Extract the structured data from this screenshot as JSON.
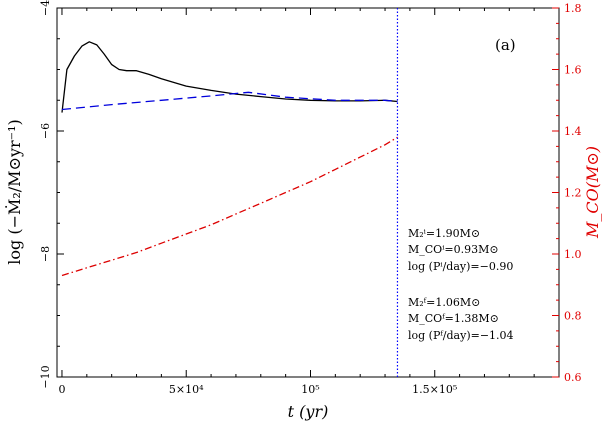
{
  "chart_data": {
    "type": "line",
    "panel_label": "(a)",
    "xlabel": "t (yr)",
    "ylabel_left": "log (−Ṁ₂/M⊙yr⁻¹)",
    "ylabel_right": "M_CO(M⊙)",
    "xlim": [
      -2000,
      200000
    ],
    "ylim_left": [
      -10,
      -4
    ],
    "ylim_right": [
      0.6,
      1.8
    ],
    "x_ticks": [
      {
        "value": 0,
        "label": "0"
      },
      {
        "value": 50000,
        "label": "5×10⁴"
      },
      {
        "value": 100000,
        "label": "10⁵"
      },
      {
        "value": 150000,
        "label": "1.5×10⁵"
      }
    ],
    "y_left_ticks": [
      {
        "value": -4,
        "label": "−4"
      },
      {
        "value": -6,
        "label": "−6"
      },
      {
        "value": -8,
        "label": "−8"
      },
      {
        "value": -10,
        "label": "−10"
      }
    ],
    "y_right_ticks": [
      {
        "value": 0.6,
        "label": "0.6"
      },
      {
        "value": 0.8,
        "label": "0.8"
      },
      {
        "value": 1.0,
        "label": "1.0"
      },
      {
        "value": 1.2,
        "label": "1.2"
      },
      {
        "value": 1.4,
        "label": "1.4"
      },
      {
        "value": 1.6,
        "label": "1.6"
      },
      {
        "value": 1.8,
        "label": "1.8"
      }
    ],
    "vline_x": 135000,
    "series": [
      {
        "axis": "left",
        "style": "solid",
        "color": "#000000",
        "x": [
          0,
          2000,
          5000,
          8000,
          11000,
          14000,
          17000,
          20000,
          23000,
          26000,
          30000,
          35000,
          40000,
          50000,
          60000,
          70000,
          80000,
          90000,
          100000,
          110000,
          120000,
          130000,
          135000
        ],
        "y": [
          -5.7,
          -5.0,
          -4.78,
          -4.62,
          -4.55,
          -4.6,
          -4.75,
          -4.92,
          -5.0,
          -5.02,
          -5.02,
          -5.08,
          -5.15,
          -5.27,
          -5.34,
          -5.4,
          -5.44,
          -5.48,
          -5.5,
          -5.51,
          -5.51,
          -5.5,
          -5.52
        ]
      },
      {
        "axis": "left",
        "style": "dashed",
        "color": "#0000dd",
        "x": [
          0,
          20000,
          40000,
          60000,
          75000,
          90000,
          110000,
          130000,
          135000
        ],
        "y": [
          -5.65,
          -5.57,
          -5.5,
          -5.43,
          -5.37,
          -5.45,
          -5.5,
          -5.5,
          -5.52
        ]
      },
      {
        "axis": "right",
        "style": "dashdot",
        "color": "#dd0000",
        "x": [
          0,
          10000,
          20000,
          30000,
          40000,
          50000,
          60000,
          70000,
          80000,
          90000,
          100000,
          110000,
          120000,
          130000,
          135000
        ],
        "y": [
          0.93,
          0.955,
          0.98,
          1.005,
          1.035,
          1.065,
          1.095,
          1.13,
          1.165,
          1.2,
          1.235,
          1.275,
          1.315,
          1.355,
          1.38
        ]
      }
    ],
    "annotations": {
      "initial": [
        "M₂ⁱ=1.90M⊙",
        "M_COⁱ=0.93M⊙",
        "log (Pⁱ/day)=−0.90"
      ],
      "final": [
        "M₂ᶠ=1.06M⊙",
        "M_COᶠ=1.38M⊙",
        "log (Pᶠ/day)=−1.04"
      ]
    },
    "colors": {
      "frame": "#000000",
      "right_axis": "#e00000",
      "vline": "#0000ff"
    }
  }
}
